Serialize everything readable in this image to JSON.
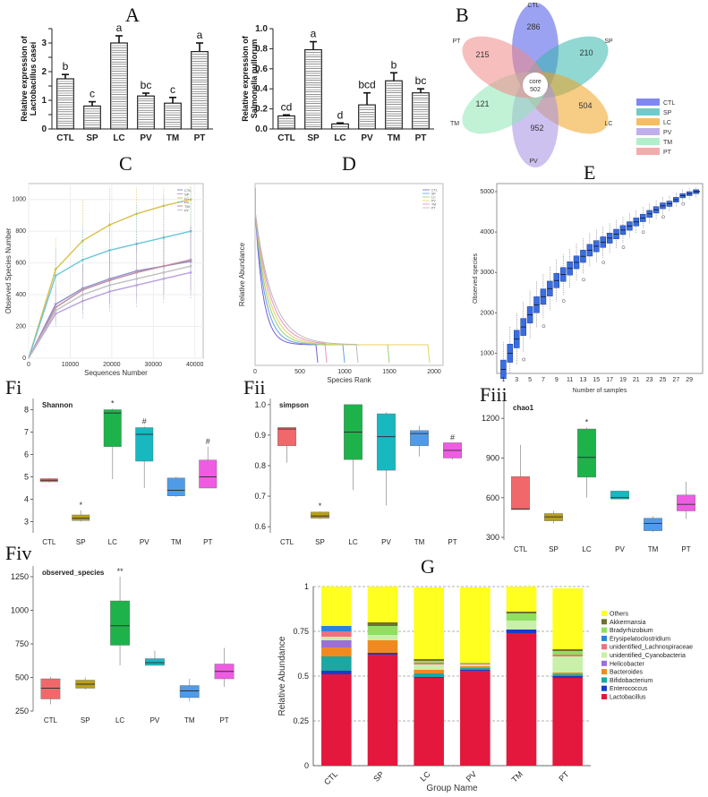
{
  "panels": {
    "A": "A",
    "B": "B",
    "C": "C",
    "D": "D",
    "E": "E",
    "Fi": "Fi",
    "Fii": "Fii",
    "Fiii": "Fiii",
    "Fiv": "Fiv",
    "G": "G"
  },
  "colors": {
    "CTL": "#f0686a",
    "SP": "#b8a01c",
    "LC": "#1db34a",
    "PV": "#17b8c0",
    "TM": "#4f9be8",
    "PT": "#ee5ce2"
  },
  "chart_data": [
    {
      "id": "A1",
      "type": "bar",
      "ylabel": "Relative expression of\nLactobacillus casei",
      "ylabel_lines": [
        "Relative expression of",
        "Lactobacillus casei"
      ],
      "categories": [
        "CTL",
        "SP",
        "LC",
        "PV",
        "TM",
        "PT"
      ],
      "values": [
        1.75,
        0.8,
        3.0,
        1.15,
        0.9,
        2.7
      ],
      "errors": [
        0.15,
        0.15,
        0.25,
        0.1,
        0.2,
        0.3
      ],
      "letters": [
        "b",
        "c",
        "a",
        "bc",
        "c",
        "a"
      ],
      "ylim": [
        0,
        3.5
      ],
      "yticks": [
        0.0,
        0.5,
        1.0,
        1.5,
        2.0,
        2.5,
        3.0,
        3.5
      ],
      "yticklabels": [
        "0",
        "",
        "1",
        "",
        "2",
        "",
        "3",
        ""
      ]
    },
    {
      "id": "A2",
      "type": "bar",
      "ylabel_lines": [
        "Relative expression of",
        "Salmonella pullorum"
      ],
      "categories": [
        "CTL",
        "SP",
        "LC",
        "PV",
        "TM",
        "PT"
      ],
      "values": [
        0.13,
        0.79,
        0.05,
        0.24,
        0.48,
        0.36
      ],
      "errors": [
        0.01,
        0.08,
        0.01,
        0.12,
        0.08,
        0.04
      ],
      "letters": [
        "cd",
        "a",
        "d",
        "bcd",
        "b",
        "bc"
      ],
      "ylim": [
        0,
        1.0
      ],
      "yticks": [
        0.0,
        0.2,
        0.4,
        0.6,
        0.8,
        1.0
      ],
      "yticklabels": [
        "0.0",
        "0.2",
        "0.4",
        "0.6",
        "0.8",
        "1.0"
      ]
    },
    {
      "id": "B",
      "type": "venn-flower",
      "core_label": "core",
      "core_value": "502",
      "petals": [
        {
          "name": "CTL",
          "value": "286",
          "color": "#4a55e8"
        },
        {
          "name": "SP",
          "value": "210",
          "color": "#36b6ad"
        },
        {
          "name": "LC",
          "value": "504",
          "color": "#f1a221"
        },
        {
          "name": "PV",
          "value": "952",
          "color": "#a48ee4"
        },
        {
          "name": "TM",
          "value": "121",
          "color": "#8ee8b4"
        },
        {
          "name": "PT",
          "value": "215",
          "color": "#f08888"
        }
      ]
    },
    {
      "id": "C",
      "type": "line",
      "xlabel": "Sequences Number",
      "ylabel": "Observed Species Number",
      "xticks": [
        0,
        10000,
        20000,
        30000,
        40000
      ],
      "yticks": [
        0,
        200,
        400,
        600,
        800,
        1000
      ],
      "xlim": [
        0,
        42000
      ],
      "ylim": [
        0,
        1100
      ],
      "x": [
        0,
        6500,
        13000,
        19500,
        26000,
        32500,
        39000
      ],
      "legend_labels": [
        "CTL",
        "SP",
        "LC",
        "PV",
        "TM",
        "PT"
      ],
      "series": [
        {
          "name": "LC",
          "color": "#d9c04a",
          "values": [
            0,
            560,
            740,
            840,
            910,
            960,
            1000
          ]
        },
        {
          "name": "PV",
          "color": "#6bc6d8",
          "values": [
            0,
            520,
            620,
            680,
            720,
            760,
            800
          ]
        },
        {
          "name": "CTL",
          "color": "#8a8ed0",
          "values": [
            0,
            340,
            440,
            500,
            550,
            580,
            610
          ]
        },
        {
          "name": "TM",
          "color": "#c08a9a",
          "values": [
            0,
            320,
            430,
            490,
            540,
            580,
            620
          ]
        },
        {
          "name": "SP",
          "color": "#b8a0e0",
          "values": [
            0,
            280,
            360,
            420,
            460,
            500,
            540
          ]
        },
        {
          "name": "PT",
          "color": "#c0c0c0",
          "values": [
            0,
            300,
            400,
            460,
            500,
            540,
            580
          ]
        }
      ]
    },
    {
      "id": "D",
      "type": "line",
      "xlabel": "Species Rank",
      "ylabel": "Relative Abundance",
      "xticks": [
        0,
        500,
        1000,
        1500,
        2000
      ],
      "xlim": [
        0,
        2100
      ],
      "legend_labels": [
        "CTL",
        "SP",
        "LC",
        "PV",
        "TM",
        "PT"
      ]
    },
    {
      "id": "E",
      "type": "boxplot",
      "xlabel": "Number of samples",
      "ylabel": "Observed species",
      "xticks": [
        1,
        3,
        5,
        7,
        9,
        11,
        13,
        15,
        17,
        19,
        21,
        23,
        25,
        27,
        29
      ],
      "yticks": [
        1000,
        2000,
        3000,
        4000,
        5000
      ],
      "ylim": [
        500,
        5200
      ],
      "medians": [
        600,
        1000,
        1350,
        1650,
        1950,
        2200,
        2400,
        2600,
        2800,
        2950,
        3100,
        3250,
        3400,
        3550,
        3650,
        3750,
        3850,
        3950,
        4050,
        4150,
        4250,
        4350,
        4450,
        4550,
        4650,
        4700,
        4800,
        4900,
        4950,
        5000
      ]
    },
    {
      "id": "Fi",
      "type": "boxplot",
      "title": "Shannon",
      "categories": [
        "CTL",
        "SP",
        "LC",
        "PV",
        "TM",
        "PT"
      ],
      "ylim": [
        2.5,
        8.5
      ],
      "yticks": [
        3,
        4,
        5,
        6,
        7,
        8
      ],
      "boxes": [
        {
          "min": 4.75,
          "q1": 4.78,
          "med": 4.85,
          "q3": 4.92,
          "max": 4.95
        },
        {
          "min": 3.0,
          "q1": 3.05,
          "med": 3.15,
          "q3": 3.3,
          "max": 3.5
        },
        {
          "min": 4.9,
          "q1": 6.35,
          "med": 7.85,
          "q3": 8.0,
          "max": 8.05
        },
        {
          "min": 4.5,
          "q1": 5.7,
          "med": 6.9,
          "q3": 7.2,
          "max": 7.25
        },
        {
          "min": 4.1,
          "q1": 4.15,
          "med": 4.4,
          "q3": 4.95,
          "max": 5.0
        },
        {
          "min": 4.5,
          "q1": 4.5,
          "med": 5.0,
          "q3": 5.75,
          "max": 6.35
        }
      ],
      "marks": [
        "",
        "*",
        "*",
        "#",
        "",
        "#"
      ]
    },
    {
      "id": "Fii",
      "type": "boxplot",
      "title": "simpson",
      "categories": [
        "CTL",
        "SP",
        "LC",
        "PV",
        "TM",
        "PT"
      ],
      "ylim": [
        0.58,
        1.02
      ],
      "yticks": [
        0.6,
        0.7,
        0.8,
        0.9,
        1.0
      ],
      "boxes": [
        {
          "min": 0.81,
          "q1": 0.865,
          "med": 0.92,
          "q3": 0.925,
          "max": 0.925
        },
        {
          "min": 0.625,
          "q1": 0.628,
          "med": 0.635,
          "q3": 0.648,
          "max": 0.65
        },
        {
          "min": 0.72,
          "q1": 0.82,
          "med": 0.91,
          "q3": 1.0,
          "max": 1.0
        },
        {
          "min": 0.67,
          "q1": 0.785,
          "med": 0.895,
          "q3": 0.97,
          "max": 0.975
        },
        {
          "min": 0.83,
          "q1": 0.865,
          "med": 0.905,
          "q3": 0.915,
          "max": 0.93
        },
        {
          "min": 0.82,
          "q1": 0.825,
          "med": 0.85,
          "q3": 0.875,
          "max": 0.875
        }
      ],
      "marks": [
        "",
        "*",
        "",
        "",
        "",
        "#"
      ]
    },
    {
      "id": "Fiii",
      "type": "boxplot",
      "title": "chao1",
      "categories": [
        "CTL",
        "SP",
        "LC",
        "PV",
        "TM",
        "PT"
      ],
      "ylim": [
        280,
        1330
      ],
      "yticks": [
        300,
        600,
        900,
        1200
      ],
      "boxes": [
        {
          "min": 510,
          "q1": 510,
          "med": 515,
          "q3": 760,
          "max": 1000
        },
        {
          "min": 405,
          "q1": 425,
          "med": 455,
          "q3": 480,
          "max": 500
        },
        {
          "min": 600,
          "q1": 755,
          "med": 905,
          "q3": 1120,
          "max": 1130
        },
        {
          "min": 590,
          "q1": 590,
          "med": 600,
          "q3": 650,
          "max": 650
        },
        {
          "min": 340,
          "q1": 350,
          "med": 405,
          "q3": 445,
          "max": 460
        },
        {
          "min": 440,
          "q1": 500,
          "med": 550,
          "q3": 620,
          "max": 720
        }
      ],
      "marks": [
        "",
        "",
        "*",
        "",
        "",
        ""
      ]
    },
    {
      "id": "Fiv",
      "type": "boxplot",
      "title": "observed_species",
      "categories": [
        "CTL",
        "SP",
        "LC",
        "PV",
        "TM",
        "PT"
      ],
      "ylim": [
        250,
        1330
      ],
      "yticks": [
        250,
        500,
        750,
        1000,
        1250
      ],
      "boxes": [
        {
          "min": 300,
          "q1": 340,
          "med": 420,
          "q3": 490,
          "max": 505
        },
        {
          "min": 410,
          "q1": 420,
          "med": 450,
          "q3": 480,
          "max": 500
        },
        {
          "min": 590,
          "q1": 740,
          "med": 885,
          "q3": 1070,
          "max": 1250
        },
        {
          "min": 590,
          "q1": 590,
          "med": 610,
          "q3": 640,
          "max": 700
        },
        {
          "min": 320,
          "q1": 350,
          "med": 400,
          "q3": 440,
          "max": 490
        },
        {
          "min": 430,
          "q1": 490,
          "med": 545,
          "q3": 600,
          "max": 720
        }
      ],
      "marks": [
        "",
        "",
        "**",
        "",
        "",
        ""
      ]
    },
    {
      "id": "G",
      "type": "stacked-bar",
      "xlabel": "Group Name",
      "ylabel": "Relative Abundance",
      "categories": [
        "CTL",
        "SP",
        "LC",
        "PV",
        "TM",
        "PT"
      ],
      "ylim": [
        0,
        1
      ],
      "yticks": [
        0,
        0.25,
        0.5,
        0.75,
        1
      ],
      "yticklabels": [
        "0",
        "0.25",
        "0.5",
        "0.75",
        "1"
      ],
      "legend_order": [
        "Others",
        "Akkermansia",
        "Bradyrhizobium",
        "Erysipelatoclostridium",
        "unidentified_Lachnospiraceae",
        "unidentified_Cyanobacteria",
        "Helicobacter",
        "Bacteroides",
        "Bifidobacterium",
        "Enterococcus",
        "Lactobacillus"
      ],
      "series": [
        {
          "name": "Lactobacillus",
          "color": "#e4183c",
          "values": [
            0.51,
            0.62,
            0.49,
            0.53,
            0.74,
            0.49
          ]
        },
        {
          "name": "Enterococcus",
          "color": "#1a3cc8",
          "values": [
            0.02,
            0.01,
            0.005,
            0.005,
            0.02,
            0.01
          ]
        },
        {
          "name": "Bifidobacterium",
          "color": "#1ea6a0",
          "values": [
            0.08,
            0.0,
            0.02,
            0.01,
            0.0,
            0.01
          ]
        },
        {
          "name": "Bacteroides",
          "color": "#f08a20",
          "values": [
            0.05,
            0.07,
            0.02,
            0.01,
            0.0,
            0.01
          ]
        },
        {
          "name": "Helicobacter",
          "color": "#9a70d8",
          "values": [
            0.04,
            0.0,
            0.0,
            0.0,
            0.0,
            0.0
          ]
        },
        {
          "name": "unidentified_Cyanobacteria",
          "color": "#c8f0a8",
          "values": [
            0.02,
            0.03,
            0.03,
            0.01,
            0.05,
            0.09
          ]
        },
        {
          "name": "unidentified_Lachnospiraceae",
          "color": "#f07080",
          "values": [
            0.03,
            0.0,
            0.01,
            0.005,
            0.0,
            0.01
          ]
        },
        {
          "name": "Erysipelatoclostridium",
          "color": "#2a82e0",
          "values": [
            0.03,
            0.0,
            0.0,
            0.0,
            0.0,
            0.0
          ]
        },
        {
          "name": "Bradyrhizobium",
          "color": "#8ee060",
          "values": [
            0.0,
            0.05,
            0.01,
            0.005,
            0.04,
            0.02
          ]
        },
        {
          "name": "Akkermansia",
          "color": "#707030",
          "values": [
            0.0,
            0.02,
            0.01,
            0.0,
            0.01,
            0.01
          ]
        },
        {
          "name": "Others",
          "color": "#ffff20",
          "values": [
            0.22,
            0.2,
            0.4,
            0.42,
            0.14,
            0.34
          ]
        }
      ]
    }
  ]
}
